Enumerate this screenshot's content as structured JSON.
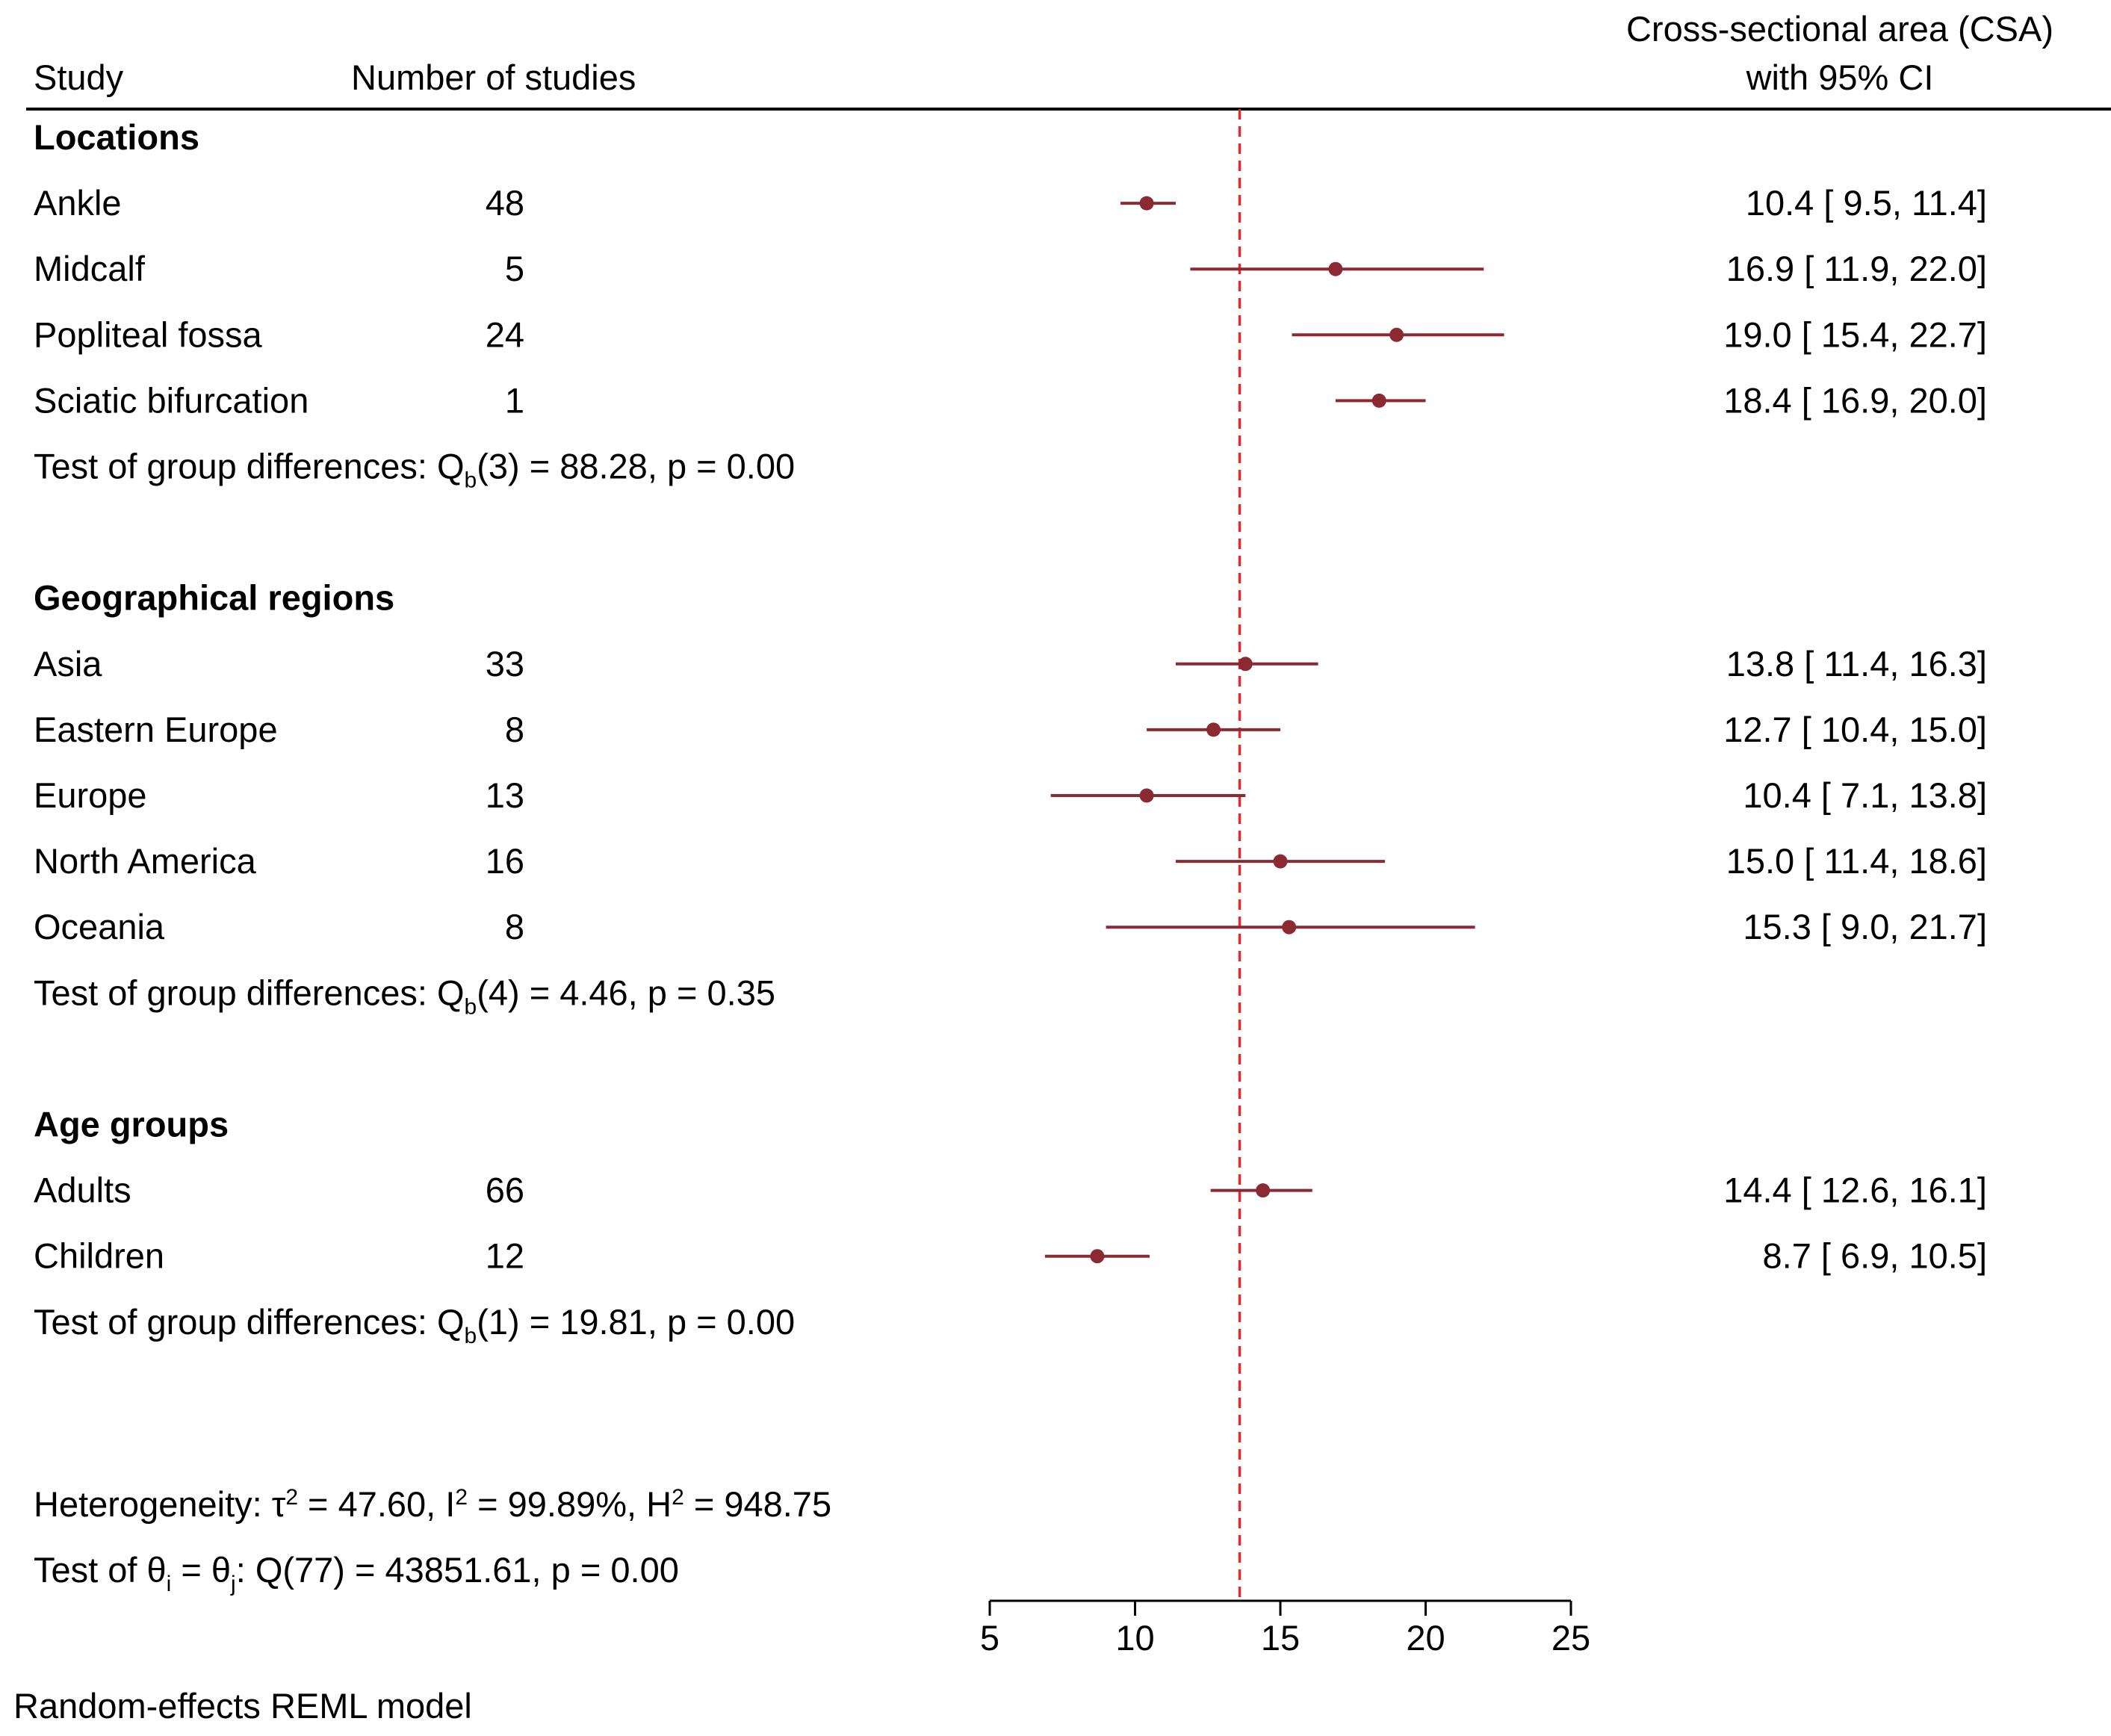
{
  "chart_data": {
    "type": "forest",
    "headers": {
      "study": "Study",
      "n": "Number of studies",
      "effect_line1": "Cross-sectional area (CSA)",
      "effect_line2": "with 95% CI"
    },
    "overall_estimate": 13.6,
    "xaxis": {
      "min": 5,
      "max": 25,
      "ticks": [
        5,
        10,
        15,
        20,
        25
      ]
    },
    "colors": {
      "marker": "#8b2a32",
      "reference": "#e8282a",
      "text": "#000000"
    },
    "groups": [
      {
        "name": "Locations",
        "rows": [
          {
            "label": "Ankle",
            "n": "48",
            "est": 10.4,
            "lo": 9.5,
            "hi": 11.4,
            "ci_text": "10.4 [   9.5,  11.4]"
          },
          {
            "label": "Midcalf",
            "n": "5",
            "est": 16.9,
            "lo": 11.9,
            "hi": 22.0,
            "ci_text": "16.9 [ 11.9,  22.0]"
          },
          {
            "label": "Popliteal fossa",
            "n": "24",
            "est": 19.0,
            "lo": 15.4,
            "hi": 22.7,
            "ci_text": "19.0 [ 15.4,  22.7]"
          },
          {
            "label": "Sciatic bifurcation",
            "n": "1",
            "est": 18.4,
            "lo": 16.9,
            "hi": 20.0,
            "ci_text": "18.4 [ 16.9,  20.0]"
          }
        ],
        "test": {
          "prefix": "Test of group differences: Q",
          "sub": "b",
          "suffix": "(3) = 88.28, p = 0.00"
        }
      },
      {
        "name": "Geographical regions",
        "rows": [
          {
            "label": "Asia",
            "n": "33",
            "est": 13.8,
            "lo": 11.4,
            "hi": 16.3,
            "ci_text": "13.8 [ 11.4,  16.3]"
          },
          {
            "label": "Eastern Europe",
            "n": "8",
            "est": 12.7,
            "lo": 10.4,
            "hi": 15.0,
            "ci_text": "12.7 [ 10.4,  15.0]"
          },
          {
            "label": "Europe",
            "n": "13",
            "est": 10.4,
            "lo": 7.1,
            "hi": 13.8,
            "ci_text": "10.4 [   7.1,  13.8]"
          },
          {
            "label": "North America",
            "n": "16",
            "est": 15.0,
            "lo": 11.4,
            "hi": 18.6,
            "ci_text": "15.0 [ 11.4,  18.6]"
          },
          {
            "label": "Oceania",
            "n": "8",
            "est": 15.3,
            "lo": 9.0,
            "hi": 21.7,
            "ci_text": "15.3 [   9.0,  21.7]"
          }
        ],
        "test": {
          "prefix": "Test of group differences: Q",
          "sub": "b",
          "suffix": "(4) = 4.46, p = 0.35"
        }
      },
      {
        "name": "Age groups",
        "rows": [
          {
            "label": "Adults",
            "n": "66",
            "est": 14.4,
            "lo": 12.6,
            "hi": 16.1,
            "ci_text": "14.4 [ 12.6,  16.1]"
          },
          {
            "label": "Children",
            "n": "12",
            "est": 8.7,
            "lo": 6.9,
            "hi": 10.5,
            "ci_text": "8.7 [   6.9,  10.5]"
          }
        ],
        "test": {
          "prefix": "Test of group differences: Q",
          "sub": "b",
          "suffix": "(1) = 19.81, p = 0.00"
        }
      }
    ],
    "heterogeneity": {
      "prefix": "Heterogeneity: τ",
      "tau_sup": "2",
      "tau_val": " = 47.60, I",
      "i_sup": "2",
      "i_val": " = 99.89%, H",
      "h_sup": "2",
      "h_val": " = 948.75"
    },
    "homogeneity_test": {
      "prefix": "Test of θ",
      "sub_i": "i",
      "mid": " = θ",
      "sub_j": "j",
      "suffix": ": Q(77) = 43851.61, p = 0.00"
    },
    "footnote": "Random-effects REML model"
  }
}
